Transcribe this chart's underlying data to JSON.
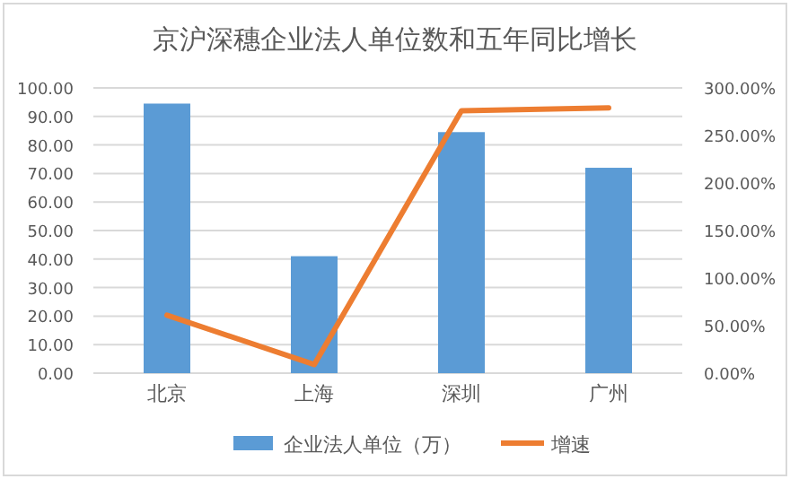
{
  "chart_data": {
    "type": "bar",
    "title": "京沪深穗企业法人单位数和五年同比增长",
    "categories": [
      "北京",
      "上海",
      "深圳",
      "广州"
    ],
    "series": [
      {
        "name": "企业法人单位（万）",
        "color": "#5b9bd5",
        "values": [
          94.5,
          41,
          84.5,
          72
        ]
      },
      {
        "name": "增速",
        "type": "line",
        "axis": "y2",
        "color": "#ed7d31",
        "values": [
          61,
          9,
          276,
          279
        ]
      }
    ],
    "ylim": [
      0,
      100
    ],
    "yticks": [
      {
        "value": 0,
        "label": "0.00"
      },
      {
        "value": 10,
        "label": "10.00"
      },
      {
        "value": 20,
        "label": "20.00"
      },
      {
        "value": 30,
        "label": "30.00"
      },
      {
        "value": 40,
        "label": "40.00"
      },
      {
        "value": 50,
        "label": "50.00"
      },
      {
        "value": 60,
        "label": "60.00"
      },
      {
        "value": 70,
        "label": "70.00"
      },
      {
        "value": 80,
        "label": "80.00"
      },
      {
        "value": 90,
        "label": "90.00"
      },
      {
        "value": 100,
        "label": "100.00"
      }
    ],
    "y2lim": [
      0,
      300
    ],
    "y2ticks": [
      {
        "value": 0,
        "label": "0.00%"
      },
      {
        "value": 50,
        "label": "50.00%"
      },
      {
        "value": 100,
        "label": "100.00%"
      },
      {
        "value": 150,
        "label": "150.00%"
      },
      {
        "value": 200,
        "label": "200.00%"
      },
      {
        "value": 250,
        "label": "250.00%"
      },
      {
        "value": 300,
        "label": "300.00%"
      }
    ],
    "grid": "y",
    "legend": "bottom"
  }
}
